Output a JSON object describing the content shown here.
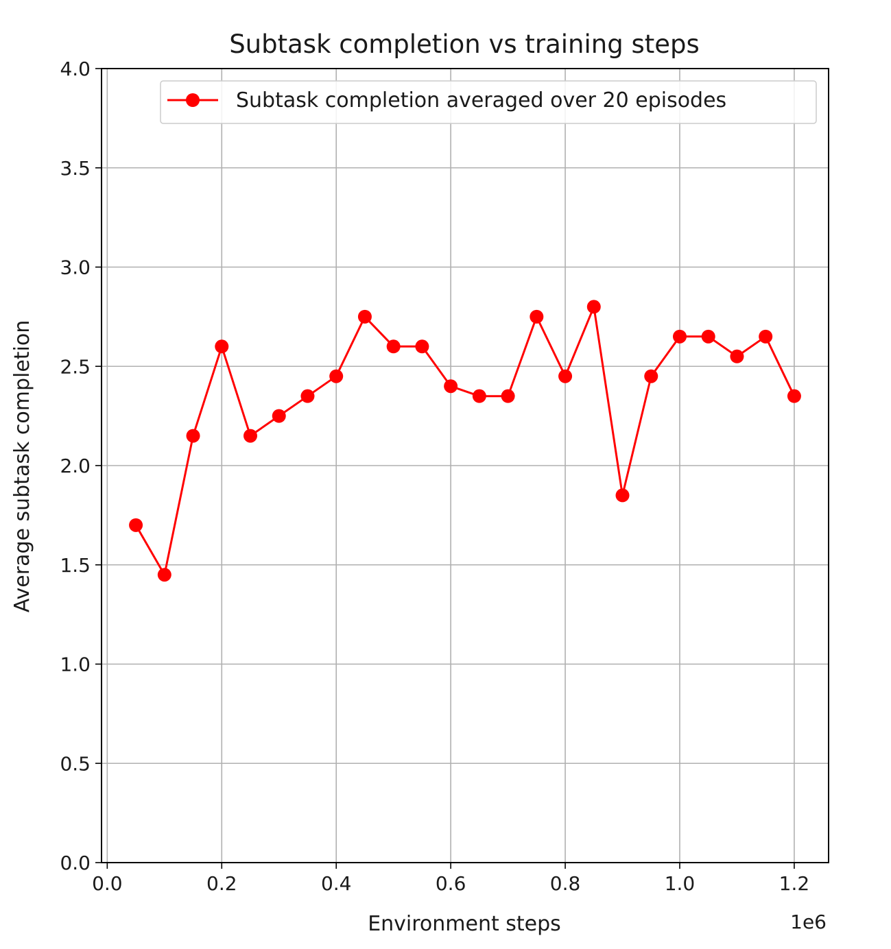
{
  "chart_data": {
    "type": "line",
    "title": "Subtask completion vs training steps",
    "xlabel": "Environment steps",
    "ylabel": "Average subtask completion",
    "x_offset_label": "1e6",
    "xlim": [
      -0.01,
      1.26
    ],
    "ylim": [
      0.0,
      4.0
    ],
    "xticks": [
      0.0,
      0.2,
      0.4,
      0.6,
      0.8,
      1.0,
      1.2
    ],
    "xtick_labels": [
      "0.0",
      "0.2",
      "0.4",
      "0.6",
      "0.8",
      "1.0",
      "1.2"
    ],
    "yticks": [
      0.0,
      0.5,
      1.0,
      1.5,
      2.0,
      2.5,
      3.0,
      3.5,
      4.0
    ],
    "ytick_labels": [
      "0.0",
      "0.5",
      "1.0",
      "1.5",
      "2.0",
      "2.5",
      "3.0",
      "3.5",
      "4.0"
    ],
    "grid": true,
    "legend_position": "top-right",
    "series": [
      {
        "name": "Subtask completion averaged over 20 episodes",
        "color": "#ff0000",
        "marker": "circle",
        "x": [
          0.05,
          0.1,
          0.15,
          0.2,
          0.25,
          0.3,
          0.35,
          0.4,
          0.45,
          0.5,
          0.55,
          0.6,
          0.65,
          0.7,
          0.75,
          0.8,
          0.85,
          0.9,
          0.95,
          1.0,
          1.05,
          1.1,
          1.15,
          1.2
        ],
        "y": [
          1.7,
          1.45,
          2.15,
          2.6,
          2.15,
          2.25,
          2.35,
          2.45,
          2.75,
          2.6,
          2.6,
          2.4,
          2.35,
          2.35,
          2.75,
          2.45,
          2.8,
          1.85,
          2.45,
          2.65,
          2.65,
          2.55,
          2.65,
          2.35
        ]
      }
    ]
  }
}
